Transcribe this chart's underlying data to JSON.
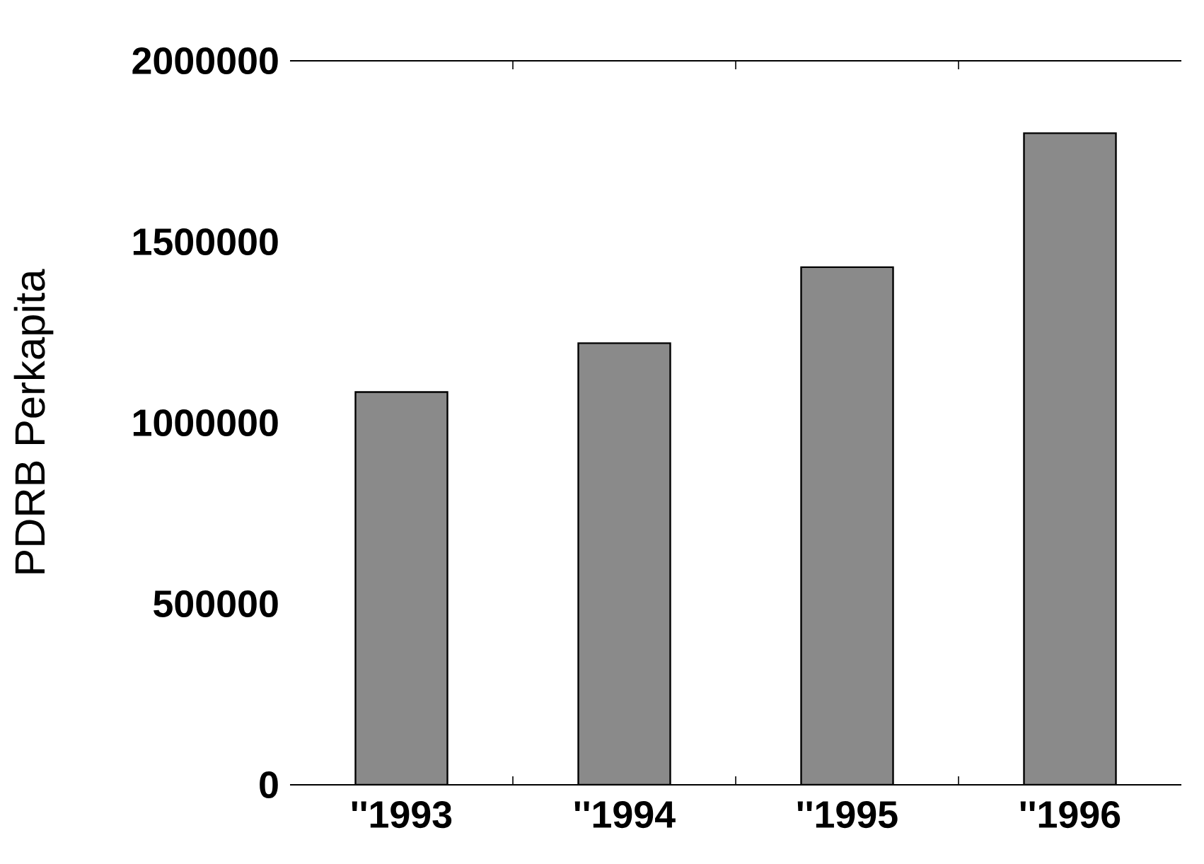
{
  "chart_data": {
    "type": "bar",
    "ylabel": "PDRB Perkapita",
    "categories": [
      "''1993",
      "''1994",
      "''1995",
      "''1996"
    ],
    "values": [
      1085000,
      1220000,
      1430000,
      1800000
    ],
    "color": "#8a8a8a",
    "ylim": [
      0,
      2000000
    ],
    "yticks": [
      0,
      500000,
      1000000,
      1500000,
      2000000
    ]
  }
}
